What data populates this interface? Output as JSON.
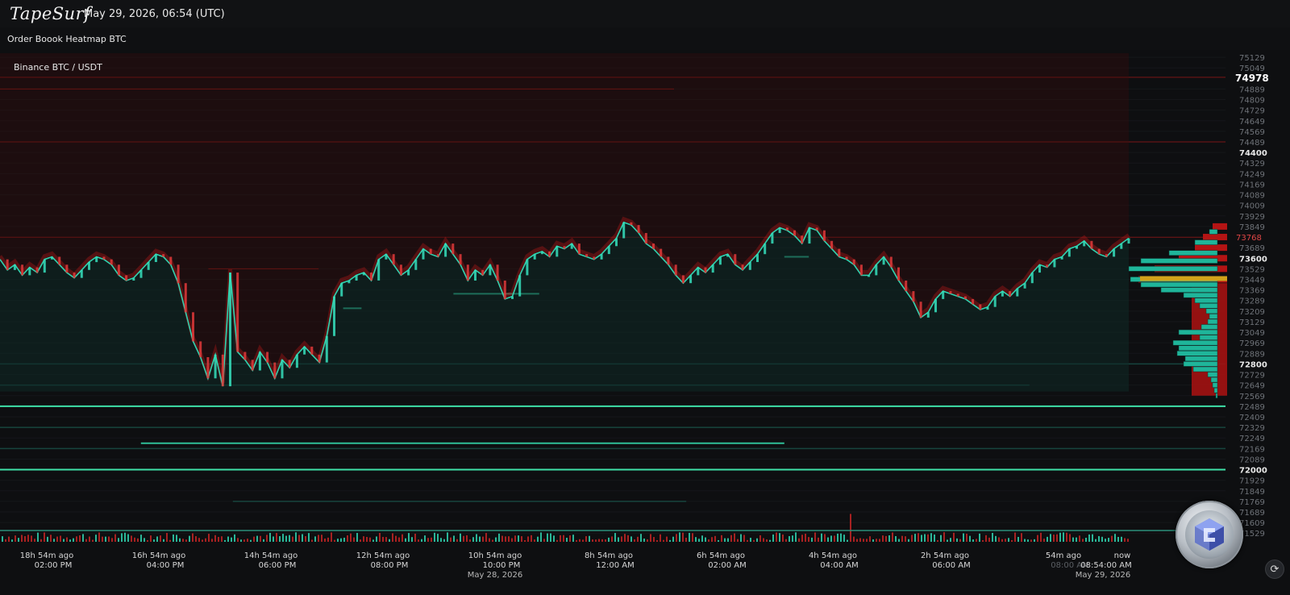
{
  "app": {
    "logo_text": "TapeSurf",
    "datetime": "May 29, 2026, 06:54 (UTC)"
  },
  "page": {
    "title": "Order Boook Heatmap BTC"
  },
  "chart_data": {
    "type": "heatmap",
    "pair_label": "Binance BTC / USDT",
    "y_axis": {
      "ticks": [
        75129,
        75049,
        74889,
        74809,
        74729,
        74649,
        74569,
        74489,
        74409,
        74329,
        74249,
        74169,
        74089,
        74009,
        73929,
        73849,
        73689,
        73609,
        73529,
        73449,
        73369,
        73289,
        73209,
        73129,
        73049,
        72969,
        72889,
        72809,
        72729,
        72649,
        72569,
        72489,
        72409,
        72329,
        72249,
        72169,
        72089,
        72009,
        71929,
        71849,
        71769,
        71689,
        71609,
        71529
      ],
      "tick_labels": [
        "75129",
        "75049",
        "74889",
        "74809",
        "74729",
        "74649",
        "74569",
        "74489",
        "74400",
        "74329",
        "74249",
        "74169",
        "74089",
        "74009",
        "73929",
        "73849",
        "73689",
        "73600",
        "73529",
        "73449",
        "73369",
        "73289",
        "73209",
        "73129",
        "73049",
        "72969",
        "72889",
        "72800",
        "72729",
        "72649",
        "72569",
        "72489",
        "72409",
        "72329",
        "72249",
        "72169",
        "72089",
        "72000",
        "71929",
        "71849",
        "71769",
        "71689",
        "71609",
        "71529"
      ],
      "highlighted_labels": [
        "74400",
        "73600",
        "72800",
        "72000"
      ],
      "range": [
        71500,
        75160
      ],
      "highlight_price": "74978",
      "overlay_price": "73768"
    },
    "x_axis": {
      "ticks": [
        {
          "rel": "18h 54m ago",
          "abs": "02:00 PM"
        },
        {
          "rel": "16h 54m ago",
          "abs": "04:00 PM"
        },
        {
          "rel": "14h 54m ago",
          "abs": "06:00 PM"
        },
        {
          "rel": "12h 54m ago",
          "abs": "08:00 PM"
        },
        {
          "rel": "10h 54m ago",
          "abs": "10:00 PM",
          "date": "May 28, 2026"
        },
        {
          "rel": "8h 54m ago",
          "abs": "12:00 AM"
        },
        {
          "rel": "6h 54m ago",
          "abs": "02:00 AM"
        },
        {
          "rel": "4h 54m ago",
          "abs": "04:00 AM"
        },
        {
          "rel": "2h 54m ago",
          "abs": "06:00 AM"
        },
        {
          "rel": "54m ago",
          "abs": "08:00 AM"
        },
        {
          "rel": "now",
          "abs": "08:54:00 AM",
          "date": "May 29, 2026"
        }
      ]
    },
    "price_path": [
      73600,
      73520,
      73560,
      73480,
      73540,
      73500,
      73600,
      73620,
      73560,
      73500,
      73460,
      73520,
      73580,
      73620,
      73600,
      73560,
      73480,
      73440,
      73460,
      73520,
      73580,
      73640,
      73620,
      73560,
      73420,
      73200,
      72980,
      72860,
      72700,
      72880,
      72640,
      73500,
      72900,
      72840,
      72760,
      72900,
      72820,
      72700,
      72840,
      72780,
      72880,
      72940,
      72880,
      72820,
      73020,
      73320,
      73420,
      73440,
      73480,
      73500,
      73440,
      73600,
      73640,
      73560,
      73480,
      73520,
      73600,
      73680,
      73640,
      73620,
      73720,
      73640,
      73560,
      73440,
      73520,
      73480,
      73560,
      73440,
      73300,
      73320,
      73480,
      73600,
      73640,
      73660,
      73620,
      73700,
      73680,
      73720,
      73640,
      73620,
      73600,
      73640,
      73700,
      73760,
      73880,
      73860,
      73800,
      73720,
      73680,
      73620,
      73560,
      73480,
      73420,
      73480,
      73540,
      73500,
      73560,
      73620,
      73640,
      73560,
      73520,
      73580,
      73640,
      73720,
      73800,
      73840,
      73820,
      73780,
      73720,
      73840,
      73820,
      73740,
      73680,
      73620,
      73600,
      73560,
      73480,
      73480,
      73560,
      73620,
      73540,
      73440,
      73360,
      73280,
      73160,
      73200,
      73300,
      73360,
      73340,
      73320,
      73300,
      73260,
      73220,
      73240,
      73320,
      73360,
      73320,
      73380,
      73420,
      73500,
      73560,
      73540,
      73600,
      73620,
      73680,
      73700,
      73740,
      73680,
      73640,
      73620,
      73680,
      73720,
      73760
    ],
    "walls": [
      {
        "price": 73768,
        "from": 0.0,
        "to": 1.0,
        "side": "ask"
      },
      {
        "price": 74489,
        "from": 0.0,
        "to": 1.0,
        "side": "ask"
      },
      {
        "price": 74978,
        "from": 0.0,
        "to": 1.0,
        "side": "ask"
      },
      {
        "price": 74889,
        "from": 0.0,
        "to": 0.55,
        "side": "ask"
      },
      {
        "price": 73529,
        "from": 0.17,
        "to": 0.26,
        "side": "ask"
      },
      {
        "price": 72489,
        "from": 0.0,
        "to": 1.0,
        "side": "bid-strong"
      },
      {
        "price": 72009,
        "from": 0.0,
        "to": 1.0,
        "side": "bid-strong"
      },
      {
        "price": 72209,
        "from": 0.115,
        "to": 0.64,
        "side": "bid"
      },
      {
        "price": 73340,
        "from": 0.37,
        "to": 0.44,
        "side": "bid"
      },
      {
        "price": 73620,
        "from": 0.64,
        "to": 0.66,
        "side": "bid"
      },
      {
        "price": 73230,
        "from": 0.28,
        "to": 0.295,
        "side": "bid"
      },
      {
        "price": 72809,
        "from": 0.0,
        "to": 1.0,
        "side": "bid-faint"
      },
      {
        "price": 72649,
        "from": 0.0,
        "to": 0.84,
        "side": "bid-faint"
      },
      {
        "price": 72329,
        "from": 0.0,
        "to": 1.0,
        "side": "bid-faint"
      },
      {
        "price": 72169,
        "from": 0.0,
        "to": 1.0,
        "side": "bid-faint"
      },
      {
        "price": 71769,
        "from": 0.19,
        "to": 0.56,
        "side": "bid-faint"
      }
    ],
    "depth_profile": {
      "asks": [
        [
          73849,
          18
        ],
        [
          73769,
          30
        ],
        [
          73689,
          40
        ],
        [
          73609,
          60
        ],
        [
          73529,
          90
        ],
        [
          73449,
          110
        ]
      ],
      "bids": [
        [
          73809,
          10
        ],
        [
          73729,
          28
        ],
        [
          73649,
          60
        ],
        [
          73589,
          95
        ],
        [
          73529,
          110
        ],
        [
          73449,
          108
        ],
        [
          73409,
          95
        ],
        [
          73369,
          70
        ],
        [
          73329,
          42
        ],
        [
          73289,
          28
        ],
        [
          73249,
          22
        ],
        [
          73209,
          14
        ],
        [
          73169,
          10
        ],
        [
          73129,
          12
        ],
        [
          73089,
          20
        ],
        [
          73049,
          48
        ],
        [
          73009,
          22
        ],
        [
          72969,
          55
        ],
        [
          72929,
          48
        ],
        [
          72889,
          50
        ],
        [
          72849,
          40
        ],
        [
          72809,
          42
        ],
        [
          72769,
          30
        ],
        [
          72729,
          12
        ],
        [
          72689,
          8
        ],
        [
          72649,
          6
        ],
        [
          72609,
          4
        ],
        [
          72569,
          2
        ]
      ]
    }
  },
  "controls": {
    "sync_icon": "refresh-icon"
  }
}
